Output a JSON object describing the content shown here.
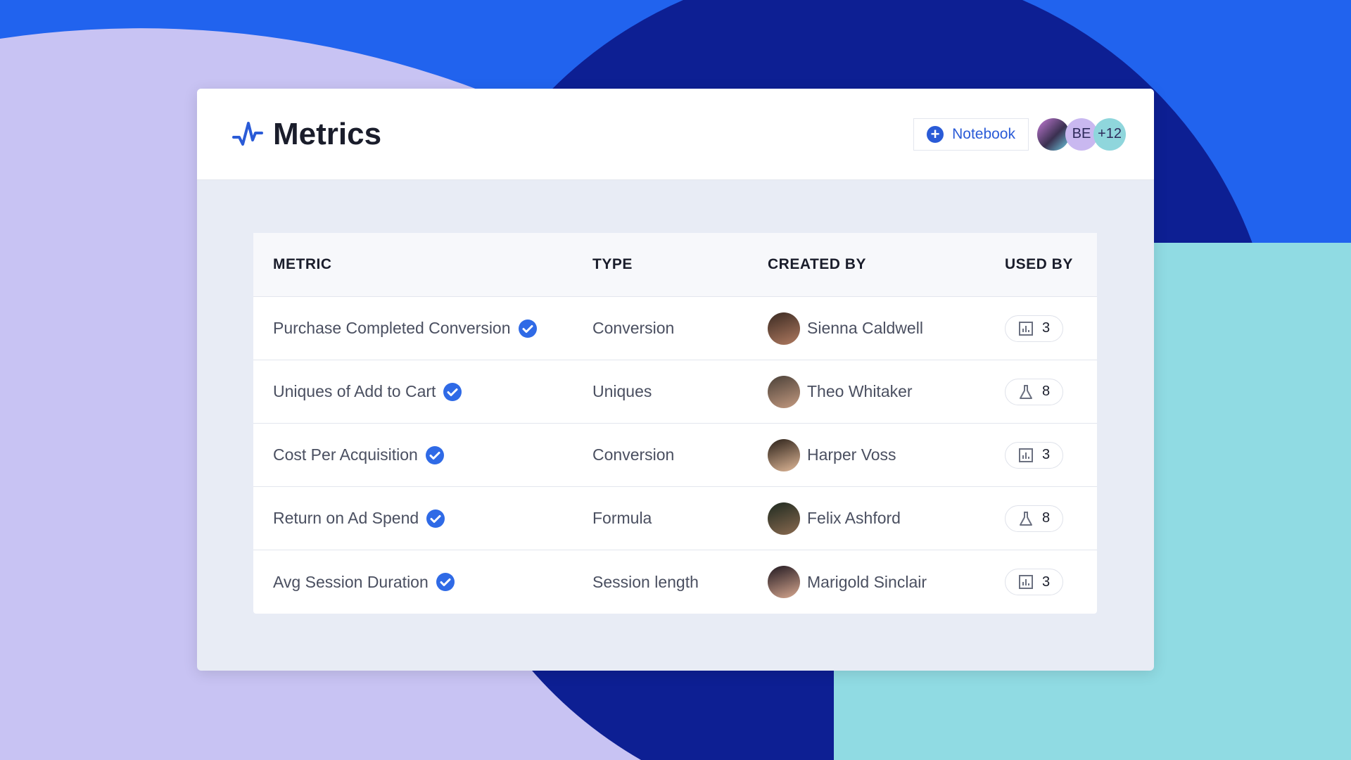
{
  "header": {
    "title": "Metrics",
    "notebook_label": "Notebook",
    "avatars": [
      {
        "initials": ""
      },
      {
        "initials": "BE",
        "color": "#c9b8f0"
      },
      {
        "initials": "+12",
        "color": "#8fd6dc"
      }
    ]
  },
  "table": {
    "columns": [
      "METRIC",
      "TYPE",
      "CREATED BY",
      "USED BY"
    ],
    "rows": [
      {
        "metric": "Purchase Completed Conversion",
        "type": "Conversion",
        "creator": "Sienna Caldwell",
        "used_icon": "bar-chart-icon",
        "used": "3",
        "verified": true
      },
      {
        "metric": "Uniques of Add to Cart",
        "type": "Uniques",
        "creator": "Theo Whitaker",
        "used_icon": "flask-icon",
        "used": "8",
        "verified": true
      },
      {
        "metric": "Cost Per Acquisition",
        "type": "Conversion",
        "creator": "Harper Voss",
        "used_icon": "bar-chart-icon",
        "used": "3",
        "verified": true
      },
      {
        "metric": "Return on Ad Spend",
        "type": "Formula",
        "creator": "Felix Ashford",
        "used_icon": "flask-icon",
        "used": "8",
        "verified": true
      },
      {
        "metric": "Avg Session Duration",
        "type": "Session length",
        "creator": "Marigold Sinclair",
        "used_icon": "bar-chart-icon",
        "used": "3",
        "verified": true
      }
    ]
  },
  "colors": {
    "accent": "#2a5bd7",
    "verified": "#2f6ae6",
    "bg_blue": "#2163ee",
    "bg_navy": "#0d1f93",
    "bg_lavender": "#c8c3f3",
    "bg_teal": "#90dbe3"
  }
}
